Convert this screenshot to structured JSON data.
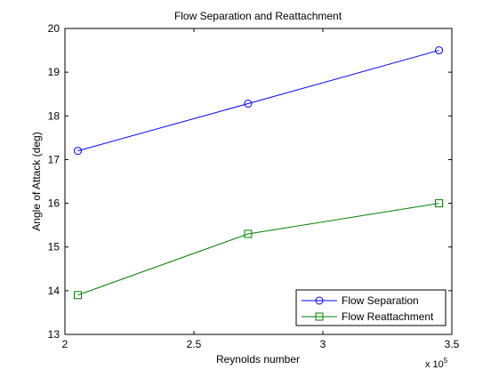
{
  "chart_data": {
    "type": "line",
    "title": "Flow Separation and Reattachment",
    "xlabel": "Reynolds number",
    "ylabel": "Angle of Attack (deg)",
    "x_multiplier_label": "x 10",
    "x_multiplier_exponent": "5",
    "xlim": [
      2,
      3.5
    ],
    "ylim": [
      13,
      20
    ],
    "x_ticks": [
      2,
      2.5,
      3,
      3.5
    ],
    "x_tick_labels": [
      "2",
      "2.5",
      "3",
      "3.5"
    ],
    "y_ticks": [
      13,
      14,
      15,
      16,
      17,
      18,
      19,
      20
    ],
    "y_tick_labels": [
      "13",
      "14",
      "15",
      "16",
      "17",
      "18",
      "19",
      "20"
    ],
    "grid": false,
    "legend_position": "bottom-right",
    "series": [
      {
        "name": "Flow Separation",
        "color": "#0000ff",
        "marker": "circle",
        "x": [
          2.05,
          2.71,
          3.45
        ],
        "y": [
          17.2,
          18.28,
          19.5
        ]
      },
      {
        "name": "Flow Reattachment",
        "color": "#008000",
        "marker": "square",
        "x": [
          2.05,
          2.71,
          3.45
        ],
        "y": [
          13.9,
          15.3,
          16.0
        ]
      }
    ]
  }
}
